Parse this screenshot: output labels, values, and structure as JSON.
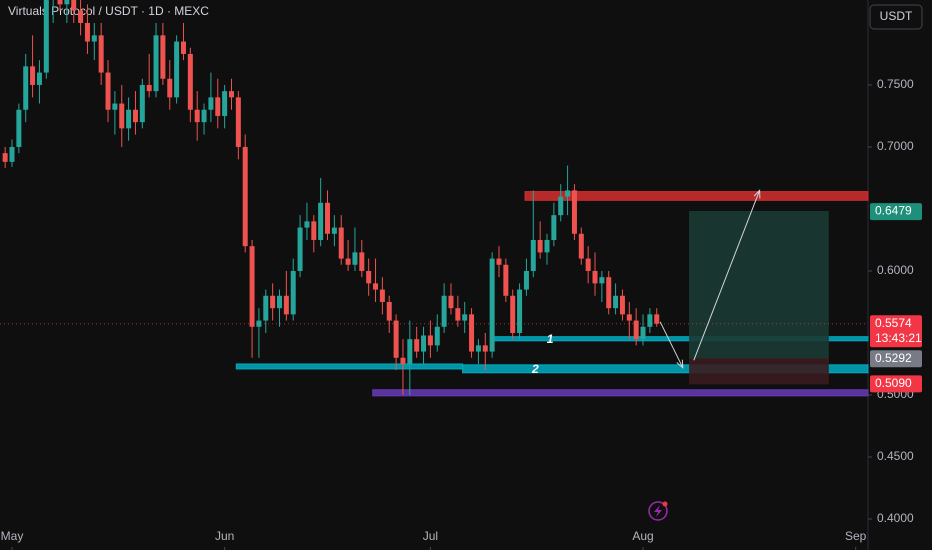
{
  "chart_data": {
    "type": "candlestick",
    "title": "Virtuals Protocol / USDT · 1D · MEXC",
    "currency_button": "USDT",
    "up_color": "#26a69a",
    "down_color": "#ef5350",
    "xlim": [
      -1.75,
      124.8
    ],
    "ylim": [
      0.375,
      0.8185
    ],
    "xticks": [
      {
        "value": 0,
        "label": "May"
      },
      {
        "value": 31,
        "label": "Jun"
      },
      {
        "value": 61,
        "label": "Jul"
      },
      {
        "value": 92,
        "label": "Aug"
      },
      {
        "value": 123,
        "label": "Sep"
      }
    ],
    "yticks": [
      {
        "value": 0.4,
        "label": "0.4000"
      },
      {
        "value": 0.45,
        "label": "0.4500"
      },
      {
        "value": 0.5,
        "label": "0.5000"
      },
      {
        "value": 0.6,
        "label": "0.6000"
      },
      {
        "value": 0.7,
        "label": "0.7000"
      },
      {
        "value": 0.75,
        "label": "0.7500"
      }
    ],
    "x": [
      -1,
      0,
      1,
      2,
      3,
      4,
      5,
      6,
      7,
      8,
      9,
      10,
      11,
      12,
      13,
      14,
      15,
      16,
      17,
      18,
      19,
      20,
      21,
      22,
      23,
      24,
      25,
      26,
      27,
      28,
      29,
      30,
      31,
      32,
      33,
      34,
      35,
      36,
      37,
      38,
      39,
      40,
      41,
      42,
      43,
      44,
      45,
      46,
      47,
      48,
      49,
      50,
      51,
      52,
      53,
      54,
      55,
      56,
      57,
      58,
      59,
      60,
      61,
      62,
      63,
      64,
      65,
      66,
      67,
      68,
      69,
      70,
      71,
      72,
      73,
      74,
      75,
      76,
      77,
      78,
      79,
      80,
      81,
      82,
      83,
      84,
      85,
      86,
      87,
      88,
      89,
      90,
      91,
      92,
      93,
      94
    ],
    "ohlc": [
      [
        0.695,
        0.7,
        0.683,
        0.688
      ],
      [
        0.688,
        0.706,
        0.684,
        0.7
      ],
      [
        0.7,
        0.735,
        0.695,
        0.73
      ],
      [
        0.73,
        0.775,
        0.72,
        0.765
      ],
      [
        0.765,
        0.79,
        0.74,
        0.75
      ],
      [
        0.75,
        0.77,
        0.735,
        0.76
      ],
      [
        0.76,
        0.83,
        0.755,
        0.82
      ],
      [
        0.82,
        0.83,
        0.8,
        0.825
      ],
      [
        0.825,
        0.83,
        0.81,
        0.815
      ],
      [
        0.815,
        0.83,
        0.8,
        0.82
      ],
      [
        0.82,
        0.83,
        0.8,
        0.81
      ],
      [
        0.81,
        0.83,
        0.79,
        0.8
      ],
      [
        0.8,
        0.815,
        0.775,
        0.785
      ],
      [
        0.785,
        0.8,
        0.77,
        0.79
      ],
      [
        0.79,
        0.8,
        0.75,
        0.76
      ],
      [
        0.76,
        0.77,
        0.72,
        0.73
      ],
      [
        0.73,
        0.745,
        0.71,
        0.735
      ],
      [
        0.735,
        0.75,
        0.7,
        0.715
      ],
      [
        0.715,
        0.74,
        0.705,
        0.73
      ],
      [
        0.73,
        0.745,
        0.71,
        0.72
      ],
      [
        0.72,
        0.755,
        0.715,
        0.75
      ],
      [
        0.75,
        0.775,
        0.74,
        0.745
      ],
      [
        0.745,
        0.8,
        0.74,
        0.79
      ],
      [
        0.79,
        0.8,
        0.75,
        0.755
      ],
      [
        0.755,
        0.77,
        0.73,
        0.74
      ],
      [
        0.74,
        0.79,
        0.735,
        0.785
      ],
      [
        0.785,
        0.8,
        0.77,
        0.775
      ],
      [
        0.775,
        0.78,
        0.72,
        0.73
      ],
      [
        0.73,
        0.745,
        0.705,
        0.72
      ],
      [
        0.72,
        0.735,
        0.71,
        0.73
      ],
      [
        0.73,
        0.76,
        0.72,
        0.74
      ],
      [
        0.74,
        0.755,
        0.715,
        0.725
      ],
      [
        0.725,
        0.75,
        0.715,
        0.745
      ],
      [
        0.745,
        0.755,
        0.73,
        0.74
      ],
      [
        0.74,
        0.745,
        0.69,
        0.7
      ],
      [
        0.7,
        0.71,
        0.615,
        0.62
      ],
      [
        0.62,
        0.625,
        0.53,
        0.555
      ],
      [
        0.555,
        0.57,
        0.53,
        0.56
      ],
      [
        0.56,
        0.585,
        0.55,
        0.58
      ],
      [
        0.58,
        0.59,
        0.56,
        0.57
      ],
      [
        0.57,
        0.585,
        0.555,
        0.58
      ],
      [
        0.58,
        0.6,
        0.56,
        0.565
      ],
      [
        0.565,
        0.61,
        0.56,
        0.6
      ],
      [
        0.6,
        0.645,
        0.595,
        0.635
      ],
      [
        0.635,
        0.655,
        0.625,
        0.64
      ],
      [
        0.64,
        0.645,
        0.615,
        0.625
      ],
      [
        0.625,
        0.675,
        0.62,
        0.655
      ],
      [
        0.655,
        0.665,
        0.625,
        0.63
      ],
      [
        0.63,
        0.645,
        0.62,
        0.635
      ],
      [
        0.635,
        0.645,
        0.605,
        0.61
      ],
      [
        0.61,
        0.625,
        0.6,
        0.605
      ],
      [
        0.605,
        0.635,
        0.6,
        0.615
      ],
      [
        0.615,
        0.625,
        0.595,
        0.6
      ],
      [
        0.6,
        0.61,
        0.58,
        0.59
      ],
      [
        0.59,
        0.61,
        0.575,
        0.585
      ],
      [
        0.585,
        0.595,
        0.565,
        0.575
      ],
      [
        0.575,
        0.58,
        0.55,
        0.56
      ],
      [
        0.56,
        0.565,
        0.52,
        0.53
      ],
      [
        0.53,
        0.545,
        0.5,
        0.525
      ],
      [
        0.525,
        0.56,
        0.5,
        0.545
      ],
      [
        0.545,
        0.555,
        0.53,
        0.535
      ],
      [
        0.535,
        0.555,
        0.525,
        0.548
      ],
      [
        0.548,
        0.56,
        0.53,
        0.54
      ],
      [
        0.54,
        0.565,
        0.535,
        0.555
      ],
      [
        0.555,
        0.59,
        0.55,
        0.58
      ],
      [
        0.58,
        0.59,
        0.565,
        0.57
      ],
      [
        0.57,
        0.58,
        0.555,
        0.56
      ],
      [
        0.56,
        0.575,
        0.55,
        0.565
      ],
      [
        0.565,
        0.57,
        0.53,
        0.535
      ],
      [
        0.535,
        0.545,
        0.525,
        0.54
      ],
      [
        0.54,
        0.55,
        0.52,
        0.535
      ],
      [
        0.535,
        0.615,
        0.53,
        0.61
      ],
      [
        0.61,
        0.62,
        0.595,
        0.605
      ],
      [
        0.605,
        0.61,
        0.575,
        0.58
      ],
      [
        0.58,
        0.585,
        0.545,
        0.55
      ],
      [
        0.55,
        0.59,
        0.545,
        0.585
      ],
      [
        0.585,
        0.61,
        0.58,
        0.6
      ],
      [
        0.6,
        0.665,
        0.595,
        0.625
      ],
      [
        0.625,
        0.64,
        0.61,
        0.615
      ],
      [
        0.615,
        0.63,
        0.605,
        0.625
      ],
      [
        0.625,
        0.655,
        0.62,
        0.645
      ],
      [
        0.645,
        0.67,
        0.64,
        0.66
      ],
      [
        0.66,
        0.685,
        0.645,
        0.665
      ],
      [
        0.665,
        0.67,
        0.625,
        0.63
      ],
      [
        0.63,
        0.635,
        0.605,
        0.61
      ],
      [
        0.61,
        0.62,
        0.59,
        0.6
      ],
      [
        0.6,
        0.615,
        0.58,
        0.59
      ],
      [
        0.59,
        0.6,
        0.575,
        0.595
      ],
      [
        0.595,
        0.6,
        0.565,
        0.57
      ],
      [
        0.57,
        0.59,
        0.565,
        0.58
      ],
      [
        0.58,
        0.585,
        0.56,
        0.565
      ],
      [
        0.565,
        0.575,
        0.545,
        0.56
      ],
      [
        0.56,
        0.57,
        0.54,
        0.545
      ],
      [
        0.545,
        0.565,
        0.54,
        0.555
      ],
      [
        0.555,
        0.57,
        0.55,
        0.565
      ],
      [
        0.565,
        0.57,
        0.555,
        0.5574
      ]
    ],
    "zones": [
      {
        "from": 74.8,
        "to": 124.8,
        "low": 0.657,
        "high": 0.664,
        "color": "#d32f2f"
      },
      {
        "from": 32.7,
        "to": 65.7,
        "low": 0.521,
        "high": 0.525,
        "color": "#00acc1"
      },
      {
        "from": 70,
        "to": 124.8,
        "low": 0.5437,
        "high": 0.547,
        "color": "#00acc1",
        "label": "1"
      },
      {
        "from": 65.7,
        "to": 124.8,
        "low": 0.5179,
        "high": 0.5243,
        "color": "#00acc1",
        "label": "2"
      },
      {
        "from": 52.6,
        "to": 124.8,
        "low": 0.4993,
        "high": 0.5042,
        "color": "#673ab7"
      },
      {
        "from": 98.8,
        "to": 119,
        "low": 0.5292,
        "high": 0.6479,
        "color": "#1b3a33"
      },
      {
        "from": 98.8,
        "to": 119,
        "low": 0.509,
        "high": 0.5292,
        "color": "#3a1c1f"
      }
    ],
    "arrows": [
      [
        [
          94.5,
          0.559
        ],
        [
          97.8,
          0.522
        ]
      ],
      [
        [
          99.4,
          0.528
        ],
        [
          109,
          0.665
        ]
      ]
    ],
    "price_labels": [
      {
        "value": 0.6479,
        "color": "#1e8f78"
      },
      {
        "value": 0.5574,
        "label": "0.5574",
        "countdown": "13:43:21",
        "color": "#f23645"
      },
      {
        "value": 0.5292,
        "color": "#787b86"
      },
      {
        "value": 0.509,
        "label": "0.5090",
        "color": "#f23645"
      }
    ]
  }
}
